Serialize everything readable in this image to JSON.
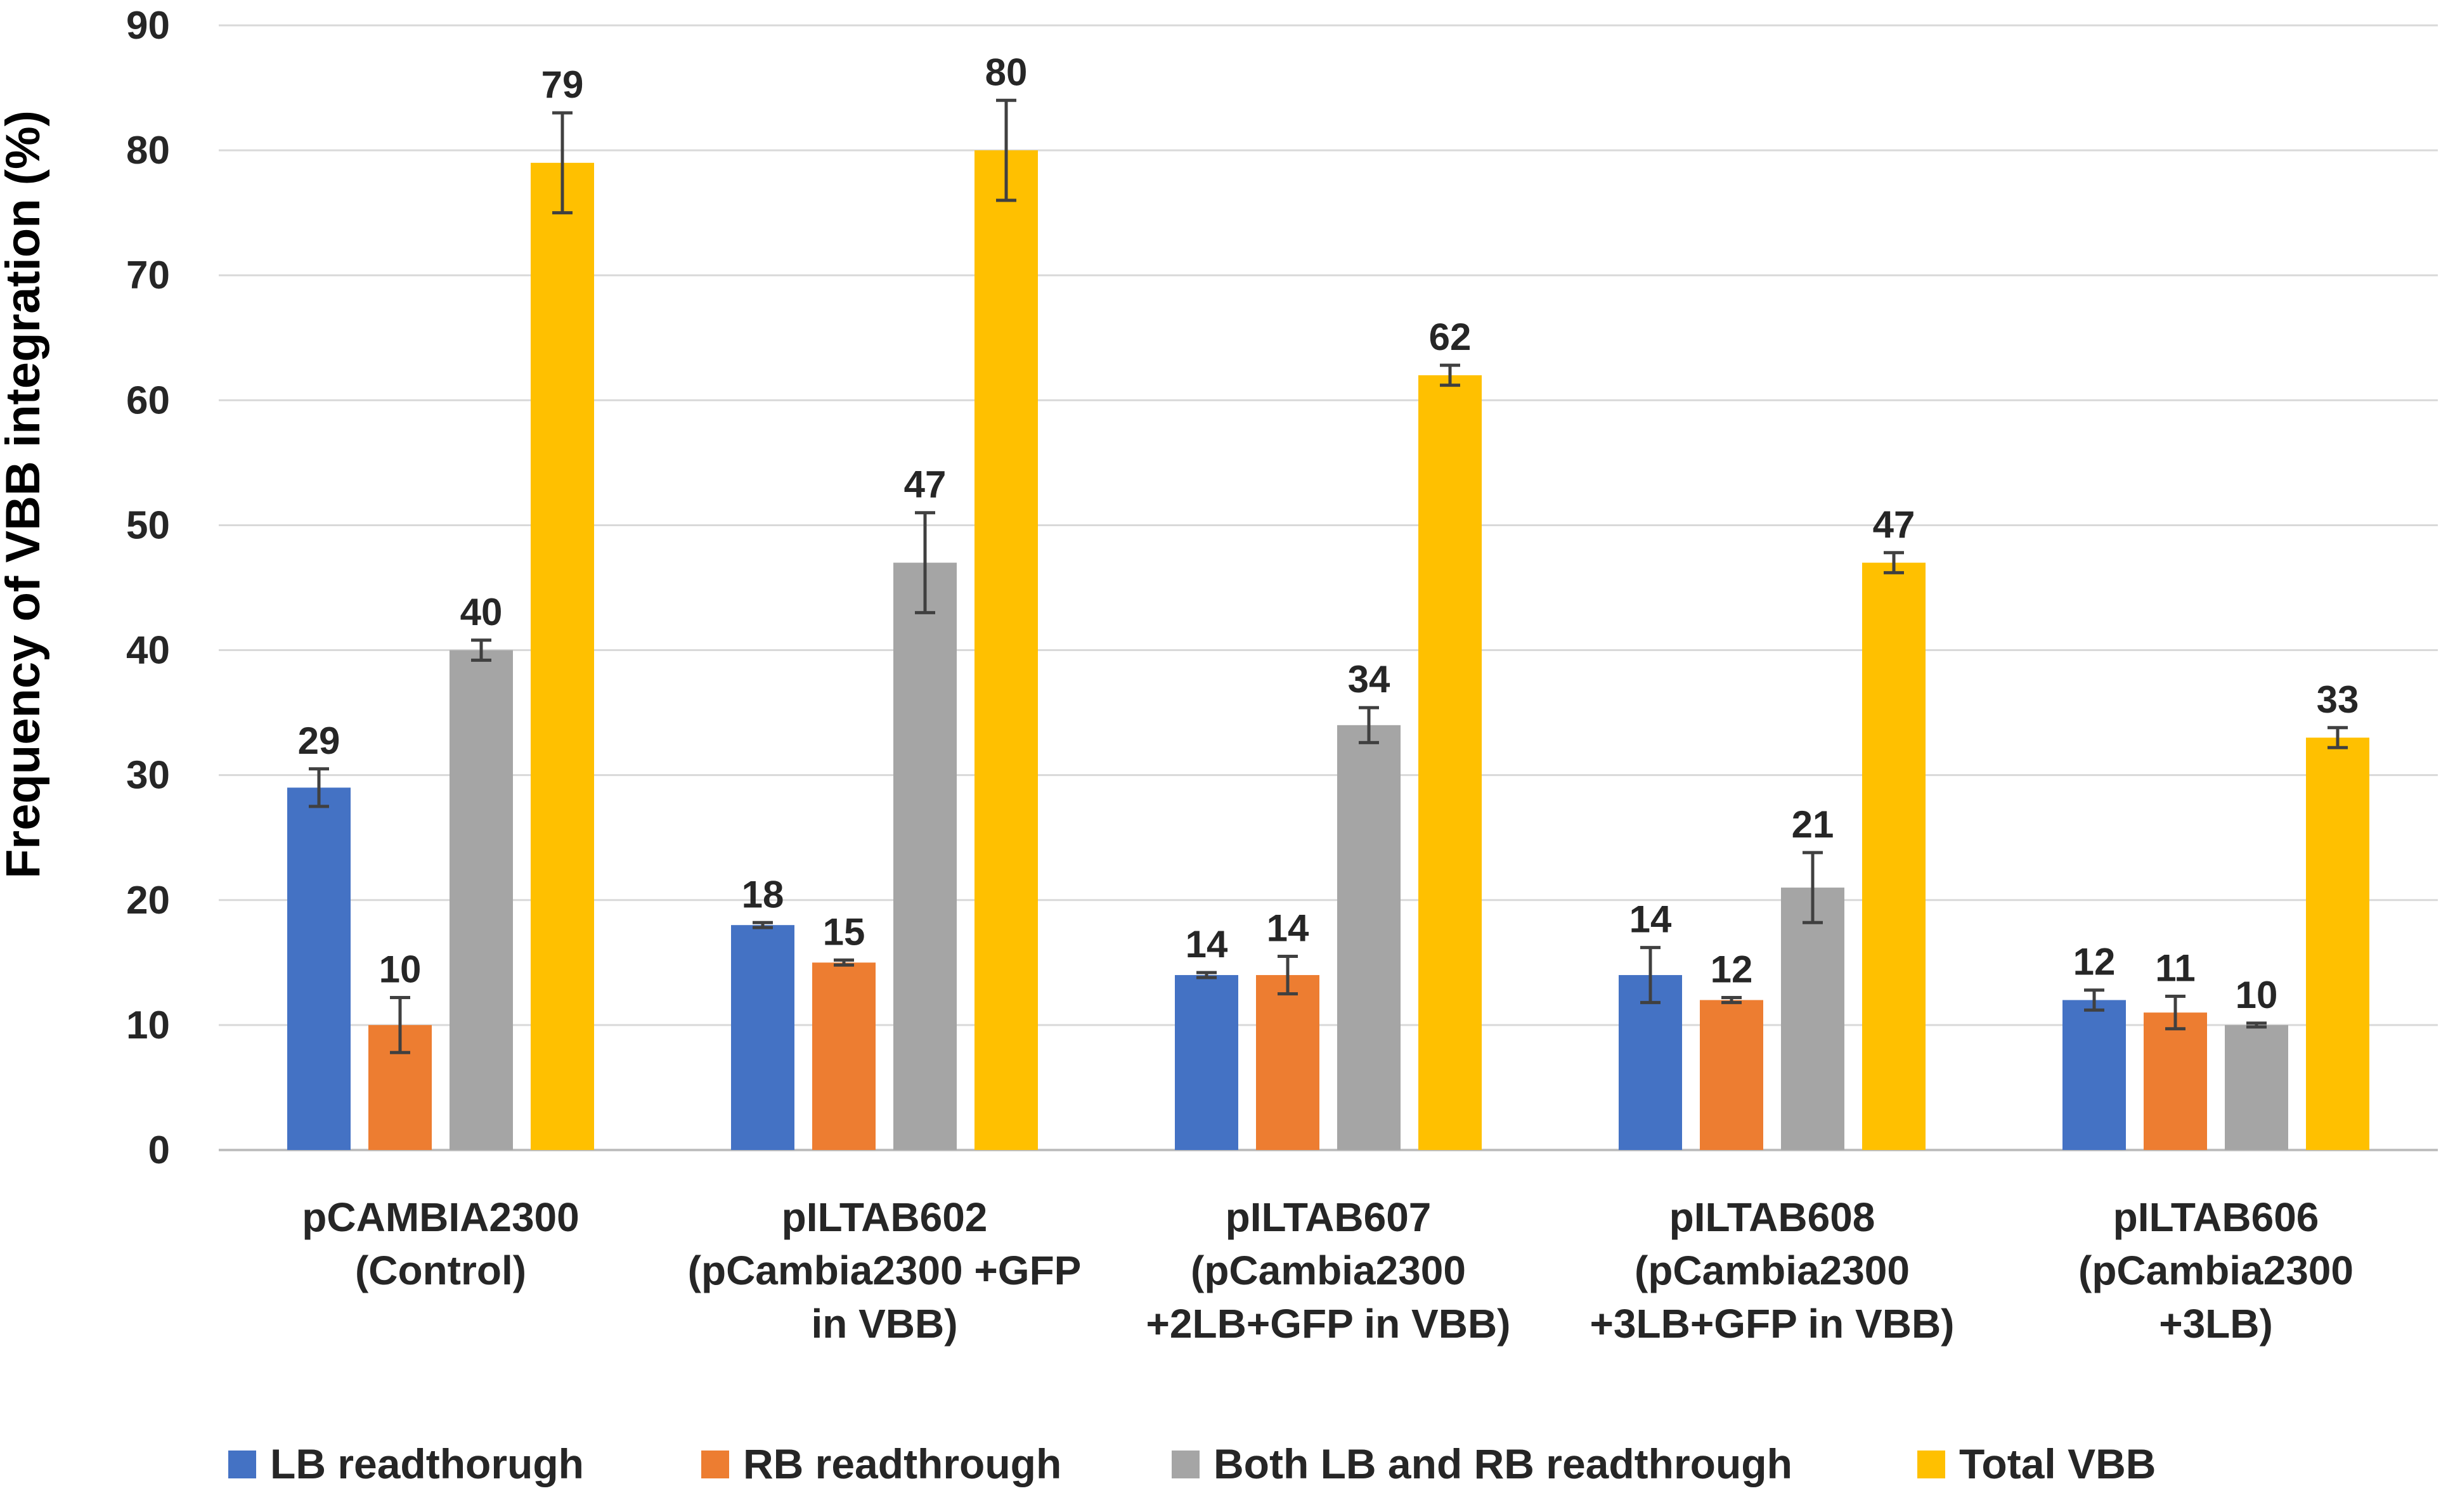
{
  "chart_data": {
    "type": "bar",
    "title": "",
    "xlabel": "",
    "ylabel": "Frequency of VBB integration (%)",
    "ylim": [
      0,
      90
    ],
    "yticks": [
      0,
      10,
      20,
      30,
      40,
      50,
      60,
      70,
      80,
      90
    ],
    "grid": true,
    "legend_position": "bottom",
    "categories": [
      [
        "pCAMBIA2300",
        "(Control)"
      ],
      [
        "pILTAB602",
        "(pCambia2300 +GFP",
        "in VBB)"
      ],
      [
        "pILTAB607",
        "(pCambia2300",
        "+2LB+GFP in VBB)"
      ],
      [
        "pILTAB608",
        "(pCambia2300",
        "+3LB+GFP in VBB)"
      ],
      [
        "pILTAB606",
        "(pCambia2300",
        "+3LB)"
      ]
    ],
    "series": [
      {
        "name": "LB readthorugh",
        "color": "#4472C4",
        "values": [
          29,
          18,
          14,
          14,
          12
        ],
        "errors": [
          1.5,
          0.2,
          0.2,
          2.2,
          0.8
        ]
      },
      {
        "name": "RB readthrough",
        "color": "#ED7D31",
        "values": [
          10,
          15,
          14,
          12,
          11
        ],
        "errors": [
          2.2,
          0.2,
          1.5,
          0.2,
          1.3
        ]
      },
      {
        "name": "Both LB and RB readthrough",
        "color": "#A5A5A5",
        "values": [
          40,
          47,
          34,
          21,
          10
        ],
        "errors": [
          0.8,
          4.0,
          1.4,
          2.8,
          0.15
        ]
      },
      {
        "name": "Total VBB",
        "color": "#FFC000",
        "values": [
          79,
          80,
          62,
          47,
          33
        ],
        "errors": [
          4.0,
          4.0,
          0.8,
          0.8,
          0.8
        ]
      }
    ]
  }
}
